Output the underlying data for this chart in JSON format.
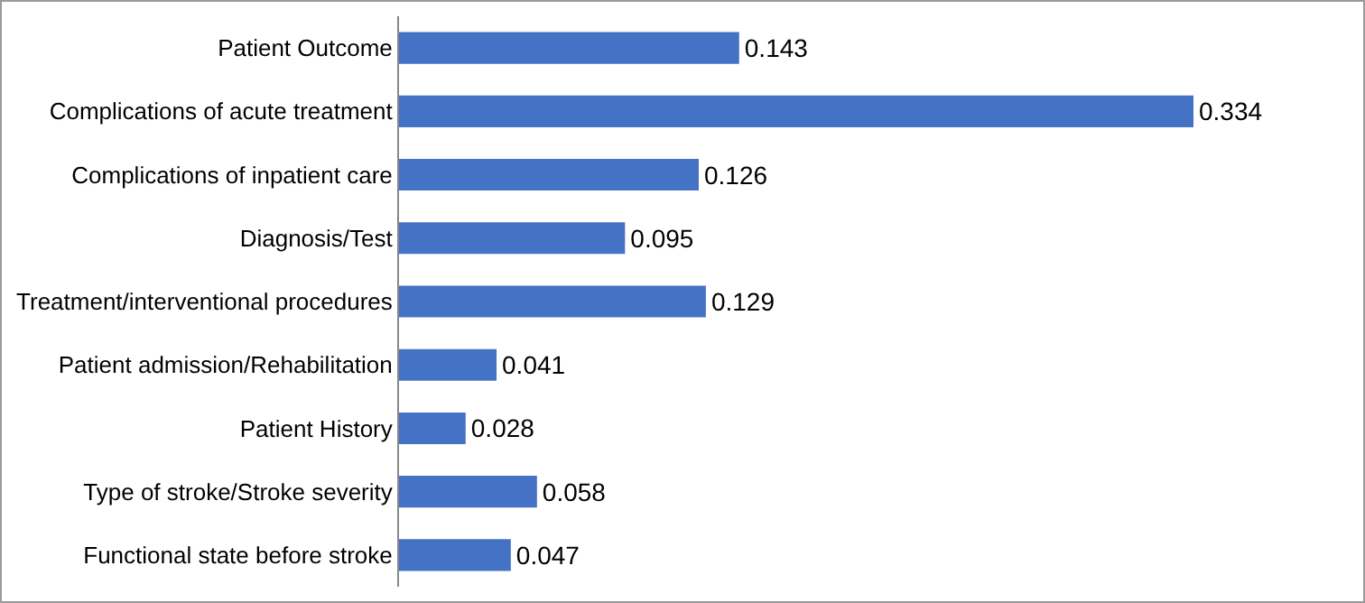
{
  "chart_data": {
    "type": "bar",
    "orientation": "horizontal",
    "categories": [
      "Patient Outcome",
      "Complications of acute treatment",
      "Complications of inpatient care",
      "Diagnosis/Test",
      "Treatment/interventional procedures",
      "Patient admission/Rehabilitation",
      "Patient History",
      "Type of stroke/Stroke severity",
      "Functional state before stroke"
    ],
    "values": [
      0.143,
      0.334,
      0.126,
      0.095,
      0.129,
      0.041,
      0.028,
      0.058,
      0.047
    ],
    "color": "#4472c4",
    "data_labels": true,
    "grid": false,
    "legend": false
  }
}
